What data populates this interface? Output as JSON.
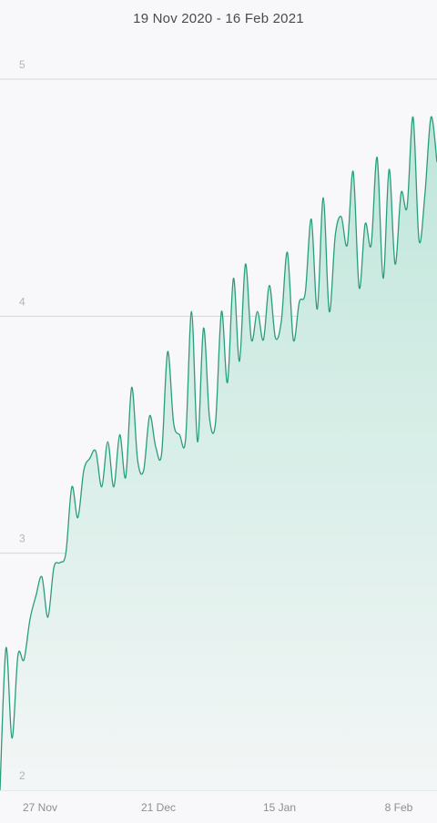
{
  "header": {
    "date_range": "19 Nov 2020 - 16 Feb 2021"
  },
  "colors": {
    "line": "#2a9d7c",
    "fill_top": "#bfe6da",
    "fill_bottom": "#f3f6f6",
    "grid": "#d6d6da",
    "background": "#f8f7fa"
  },
  "chart_data": {
    "type": "area",
    "title": "",
    "xlabel": "",
    "ylabel": "",
    "ylim": [
      2,
      5
    ],
    "yticks": [
      "2",
      "3",
      "4",
      "5"
    ],
    "xticks": [
      "27 Nov",
      "21 Dec",
      "15 Jan",
      "8 Feb"
    ],
    "grid": true,
    "series": [
      {
        "values": [
          2.0,
          2.6,
          2.22,
          2.57,
          2.55,
          2.72,
          2.82,
          2.9,
          2.73,
          2.94,
          2.96,
          3.0,
          3.28,
          3.15,
          3.35,
          3.4,
          3.43,
          3.28,
          3.47,
          3.28,
          3.5,
          3.32,
          3.7,
          3.39,
          3.35,
          3.58,
          3.45,
          3.42,
          3.85,
          3.55,
          3.5,
          3.48,
          4.02,
          3.47,
          3.95,
          3.57,
          3.55,
          4.02,
          3.72,
          4.16,
          3.81,
          4.22,
          3.9,
          4.02,
          3.9,
          4.13,
          3.91,
          3.98,
          4.27,
          3.9,
          4.06,
          4.1,
          4.41,
          4.03,
          4.5,
          4.02,
          4.34,
          4.42,
          4.3,
          4.61,
          4.12,
          4.39,
          4.3,
          4.67,
          4.16,
          4.62,
          4.22,
          4.52,
          4.46,
          4.84,
          4.32,
          4.52,
          4.84,
          4.65
        ]
      }
    ]
  }
}
